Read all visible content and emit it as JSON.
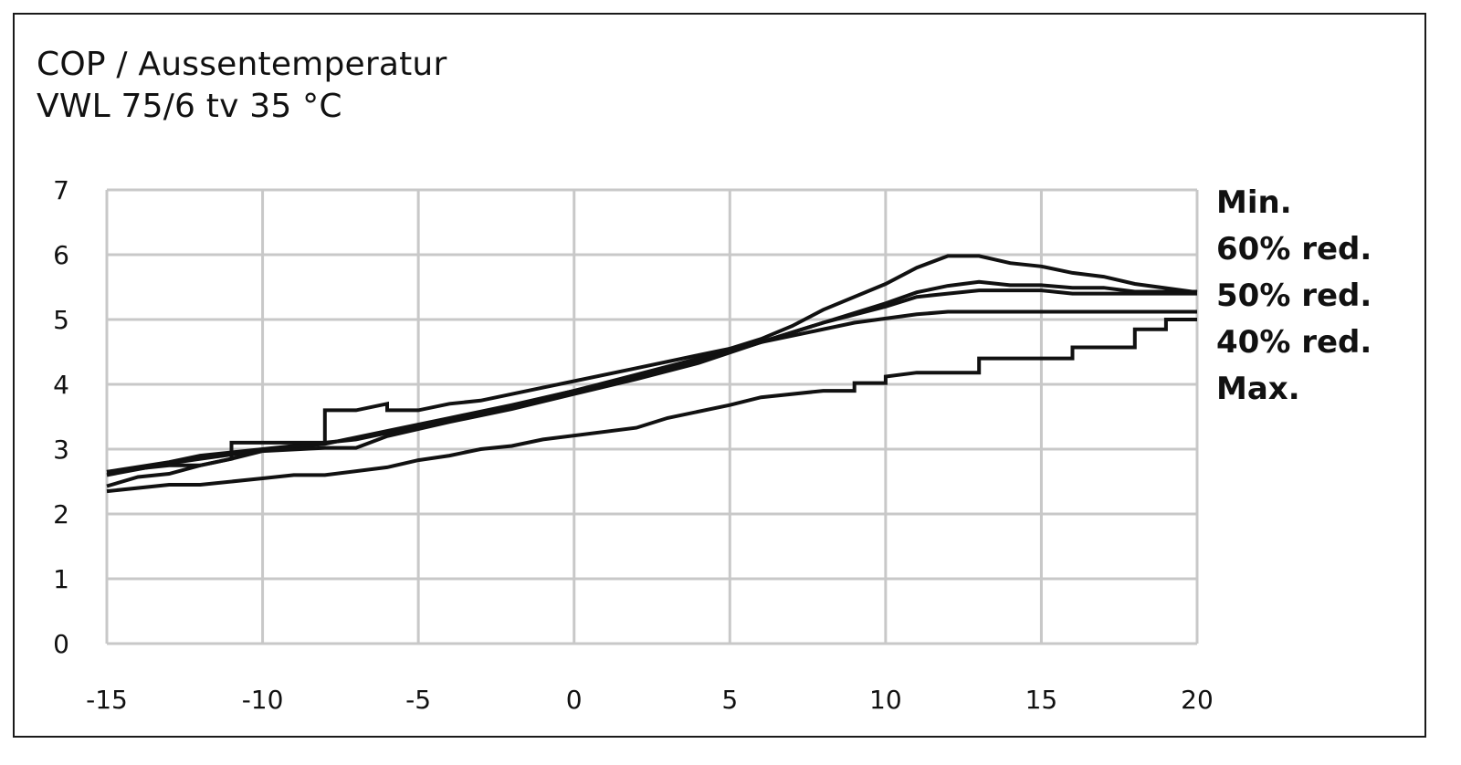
{
  "title": "COP / Aussentemperatur",
  "subtitle": "VWL 75/6 tv 35 °C",
  "chart_data": {
    "type": "line",
    "title": "COP / Aussentemperatur",
    "subtitle": "VWL 75/6 tv 35 °C",
    "xlabel": "",
    "ylabel": "",
    "xlim": [
      -15,
      20
    ],
    "ylim": [
      0,
      7
    ],
    "xticks": [
      -15,
      -10,
      -5,
      0,
      5,
      10,
      15,
      20
    ],
    "yticks": [
      0,
      1,
      2,
      3,
      4,
      5,
      6,
      7
    ],
    "grid": true,
    "legend_position": "right",
    "legend": [
      "Min.",
      "60% red.",
      "50% red.",
      "40% red.",
      "Max."
    ],
    "series": [
      {
        "name": "Min.",
        "x": [
          -15,
          -13,
          -12,
          -10,
          -8,
          -7,
          -5,
          -3,
          0,
          2,
          4,
          6,
          7,
          8,
          10,
          11,
          12,
          13,
          14,
          15,
          16,
          17,
          18,
          20
        ],
        "y": [
          2.65,
          2.8,
          2.9,
          3.0,
          3.1,
          3.15,
          3.35,
          3.55,
          3.9,
          4.15,
          4.4,
          4.7,
          4.9,
          5.15,
          5.55,
          5.8,
          5.98,
          5.98,
          5.87,
          5.82,
          5.72,
          5.66,
          5.55,
          5.42
        ]
      },
      {
        "name": "60% red.",
        "x": [
          -15,
          -13,
          -12,
          -10,
          -8,
          -6,
          -4,
          -2,
          0,
          2,
          4,
          6,
          8,
          10,
          11,
          12,
          13,
          14,
          15,
          16,
          17,
          18,
          20
        ],
        "y": [
          2.6,
          2.78,
          2.85,
          2.98,
          3.08,
          3.28,
          3.48,
          3.68,
          3.9,
          4.12,
          4.35,
          4.65,
          4.95,
          5.25,
          5.42,
          5.52,
          5.58,
          5.53,
          5.53,
          5.49,
          5.49,
          5.43,
          5.43
        ]
      },
      {
        "name": "50% red.",
        "x": [
          -15,
          -14,
          -13,
          -12,
          -11,
          -10,
          -8,
          -7,
          -6,
          -4,
          -2,
          0,
          2,
          4,
          6,
          8,
          10,
          11,
          12,
          13,
          14,
          15,
          16,
          17,
          18,
          19,
          20
        ],
        "y": [
          2.43,
          2.57,
          2.62,
          2.75,
          2.85,
          2.97,
          3.02,
          3.02,
          3.2,
          3.42,
          3.62,
          3.85,
          4.08,
          4.33,
          4.65,
          4.95,
          5.2,
          5.35,
          5.4,
          5.45,
          5.45,
          5.45,
          5.4,
          5.4,
          5.4,
          5.4,
          5.4
        ]
      },
      {
        "name": "40% red.",
        "x": [
          -15,
          -13,
          -12,
          -11,
          -11,
          -8,
          -8,
          -7,
          -6,
          -6,
          -5,
          -4,
          -3,
          -1,
          0,
          2,
          4,
          5,
          7,
          9,
          11,
          12,
          13,
          15,
          18,
          20
        ],
        "y": [
          2.65,
          2.75,
          2.75,
          2.85,
          3.1,
          3.1,
          3.6,
          3.6,
          3.7,
          3.6,
          3.6,
          3.7,
          3.75,
          3.95,
          4.05,
          4.25,
          4.45,
          4.55,
          4.75,
          4.95,
          5.08,
          5.12,
          5.12,
          5.12,
          5.12,
          5.12
        ]
      },
      {
        "name": "Max.",
        "x": [
          -15,
          -13,
          -12,
          -10,
          -9,
          -8,
          -6,
          -5,
          -4,
          -3,
          -2,
          -1,
          2,
          3,
          5,
          6,
          8,
          9,
          9,
          10,
          10,
          11,
          13,
          13,
          16,
          16,
          18,
          18,
          19,
          19,
          20
        ],
        "y": [
          2.35,
          2.45,
          2.45,
          2.55,
          2.6,
          2.6,
          2.72,
          2.83,
          2.9,
          3.0,
          3.05,
          3.15,
          3.33,
          3.48,
          3.68,
          3.8,
          3.9,
          3.9,
          4.02,
          4.02,
          4.12,
          4.18,
          4.18,
          4.4,
          4.4,
          4.57,
          4.57,
          4.85,
          4.85,
          5.0,
          5.0
        ]
      }
    ]
  }
}
